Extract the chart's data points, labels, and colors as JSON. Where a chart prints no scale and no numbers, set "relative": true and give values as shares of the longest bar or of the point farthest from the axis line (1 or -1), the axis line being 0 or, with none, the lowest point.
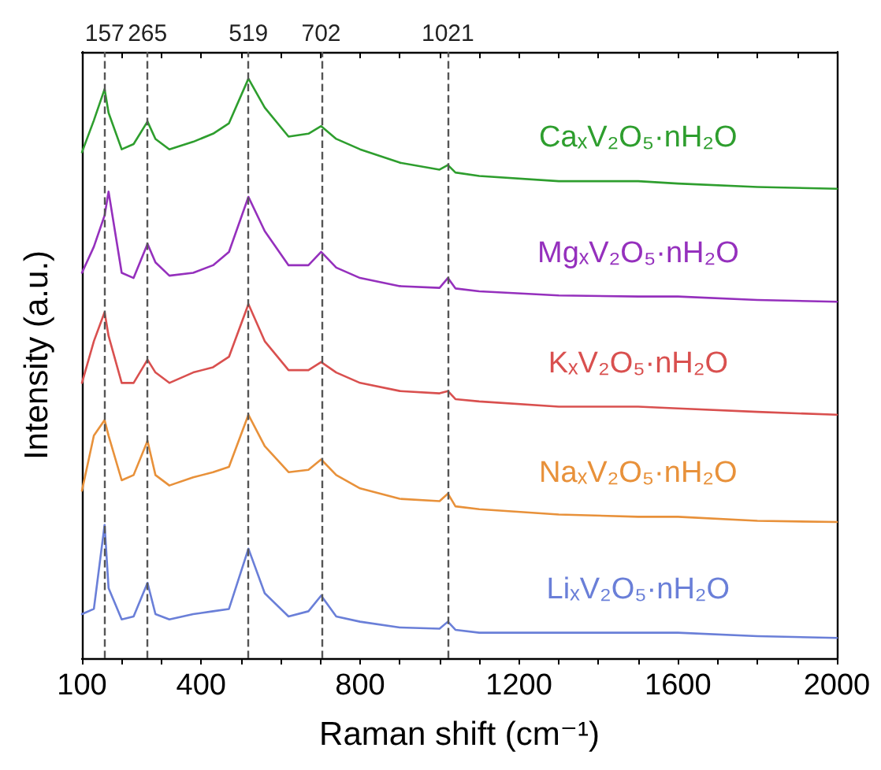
{
  "chart_data": {
    "type": "line",
    "relative": true,
    "xlabel": "Raman shift (cm⁻¹)",
    "ylabel": "Intensity (a.u.)",
    "xlim": [
      100,
      2000
    ],
    "xticks": [
      100,
      {
        "value": 200,
        "label": null
      },
      {
        "value": 300,
        "label": null
      },
      400,
      {
        "value": 500,
        "label": null
      },
      {
        "value": 600,
        "label": null
      },
      {
        "value": 700,
        "label": null
      },
      800,
      {
        "value": 900,
        "label": null
      },
      {
        "value": 1000,
        "label": null
      },
      {
        "value": 1100,
        "label": null
      },
      1200,
      {
        "value": 1300,
        "label": null
      },
      {
        "value": 1400,
        "label": null
      },
      {
        "value": 1500,
        "label": null
      },
      1600,
      {
        "value": 1700,
        "label": null
      },
      {
        "value": 1800,
        "label": null
      },
      {
        "value": 1900,
        "label": null
      },
      2000
    ],
    "x": [
      100,
      130,
      157,
      167,
      200,
      230,
      265,
      285,
      320,
      380,
      430,
      470,
      519,
      560,
      620,
      670,
      702,
      740,
      800,
      900,
      1000,
      1021,
      1040,
      1100,
      1300,
      1500,
      1600,
      1800,
      2000
    ],
    "series": [
      {
        "name": "CaₓV₂O₅·nH₂O",
        "color": "#2e9e2e",
        "values": [
          0.873,
          0.928,
          0.982,
          0.941,
          0.878,
          0.887,
          0.926,
          0.896,
          0.878,
          0.891,
          0.905,
          0.923,
          1.0,
          0.95,
          0.9,
          0.905,
          0.918,
          0.896,
          0.878,
          0.855,
          0.843,
          0.851,
          0.838,
          0.832,
          0.823,
          0.823,
          0.819,
          0.813,
          0.81
        ]
      },
      {
        "name": "MgₓV₂O₅·nH₂O",
        "color": "#9530bd",
        "values": [
          0.665,
          0.71,
          0.764,
          0.805,
          0.665,
          0.656,
          0.715,
          0.683,
          0.66,
          0.665,
          0.678,
          0.701,
          0.796,
          0.737,
          0.678,
          0.678,
          0.701,
          0.674,
          0.656,
          0.642,
          0.639,
          0.656,
          0.638,
          0.633,
          0.626,
          0.624,
          0.624,
          0.618,
          0.615
        ]
      },
      {
        "name": "KₓV₂O₅·nH₂O",
        "color": "#d9504f",
        "values": [
          0.475,
          0.547,
          0.597,
          0.556,
          0.475,
          0.475,
          0.515,
          0.493,
          0.475,
          0.493,
          0.502,
          0.52,
          0.611,
          0.547,
          0.497,
          0.497,
          0.511,
          0.493,
          0.475,
          0.461,
          0.457,
          0.461,
          0.447,
          0.443,
          0.434,
          0.434,
          0.431,
          0.425,
          0.42
        ]
      },
      {
        "name": "NaₓV₂O₅·nH₂O",
        "color": "#e8913a",
        "values": [
          0.289,
          0.384,
          0.411,
          0.384,
          0.307,
          0.316,
          0.375,
          0.316,
          0.298,
          0.312,
          0.321,
          0.33,
          0.42,
          0.366,
          0.321,
          0.325,
          0.343,
          0.316,
          0.293,
          0.275,
          0.271,
          0.284,
          0.262,
          0.257,
          0.248,
          0.244,
          0.244,
          0.237,
          0.235
        ]
      },
      {
        "name": "LiₓV₂O₅·nH₂O",
        "color": "#6a7fd8",
        "values": [
          0.076,
          0.085,
          0.23,
          0.121,
          0.067,
          0.072,
          0.13,
          0.076,
          0.067,
          0.076,
          0.081,
          0.085,
          0.189,
          0.112,
          0.072,
          0.081,
          0.108,
          0.072,
          0.063,
          0.053,
          0.051,
          0.063,
          0.049,
          0.044,
          0.044,
          0.044,
          0.044,
          0.038,
          0.035
        ]
      }
    ],
    "ref_lines": [
      {
        "axis": "x",
        "value": 157,
        "label": "157",
        "color": "#555555",
        "line_style": "dashed"
      },
      {
        "axis": "x",
        "value": 265,
        "label": "265",
        "color": "#555555",
        "line_style": "dashed"
      },
      {
        "axis": "x",
        "value": 519,
        "label": "519",
        "color": "#555555",
        "line_style": "dashed"
      },
      {
        "axis": "x",
        "value": 702,
        "label": "702",
        "color": "#555555",
        "line_style": "dashed"
      },
      {
        "axis": "x",
        "value": 1021,
        "label": "1021",
        "color": "#555555",
        "line_style": "dashed"
      }
    ],
    "grid": false,
    "legend": false,
    "marker": "none",
    "line_style": "solid"
  }
}
